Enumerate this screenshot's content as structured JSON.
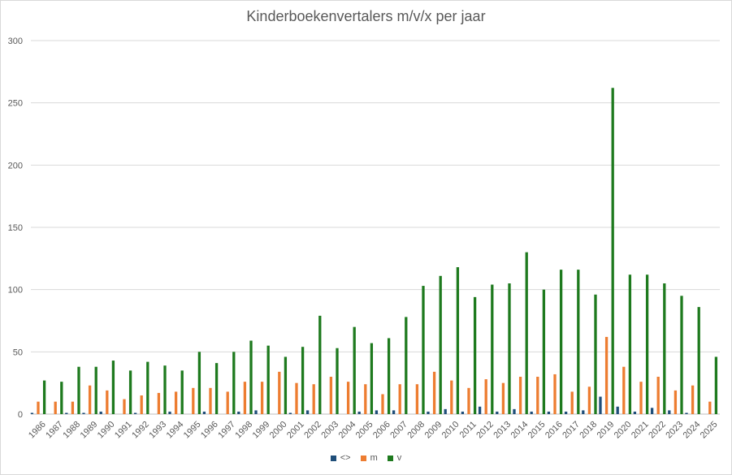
{
  "chart_data": {
    "type": "bar",
    "title": "Kinderboekenvertalers m/v/x per jaar",
    "xlabel": "",
    "ylabel": "",
    "ylim": [
      0,
      300
    ],
    "yticks": [
      0,
      50,
      100,
      150,
      200,
      250,
      300
    ],
    "grid": true,
    "legend_position": "bottom",
    "categories": [
      "1986",
      "1987",
      "1988",
      "1989",
      "1990",
      "1991",
      "1992",
      "1993",
      "1994",
      "1995",
      "1996",
      "1997",
      "1998",
      "1999",
      "2000",
      "2001",
      "2002",
      "2003",
      "2004",
      "2005",
      "2006",
      "2007",
      "2008",
      "2009",
      "2010",
      "2011",
      "2012",
      "2013",
      "2014",
      "2015",
      "2016",
      "2017",
      "2018",
      "2019",
      "2020",
      "2021",
      "2022",
      "2023",
      "2024",
      "2025"
    ],
    "series": [
      {
        "name": "<>",
        "color": "#1f4e79",
        "values": [
          1,
          0,
          1,
          1,
          2,
          0,
          1,
          0,
          2,
          0,
          2,
          0,
          2,
          3,
          0,
          1,
          3,
          0,
          0,
          2,
          3,
          3,
          0,
          2,
          4,
          2,
          6,
          2,
          4,
          2,
          2,
          2,
          3,
          14,
          6,
          2,
          5,
          3,
          1,
          0
        ]
      },
      {
        "name": "m",
        "color": "#ed7d31",
        "values": [
          10,
          10,
          10,
          23,
          19,
          12,
          15,
          17,
          18,
          21,
          21,
          18,
          26,
          26,
          34,
          25,
          24,
          30,
          26,
          24,
          16,
          24,
          24,
          34,
          27,
          21,
          28,
          25,
          30,
          30,
          32,
          18,
          22,
          62,
          38,
          26,
          30,
          19,
          23,
          10
        ]
      },
      {
        "name": "v",
        "color": "#1e7a1e",
        "values": [
          27,
          26,
          38,
          38,
          43,
          35,
          42,
          39,
          35,
          50,
          41,
          50,
          59,
          55,
          46,
          54,
          79,
          53,
          70,
          57,
          61,
          78,
          103,
          111,
          118,
          94,
          104,
          105,
          130,
          100,
          116,
          116,
          96,
          262,
          112,
          112,
          105,
          95,
          86,
          46
        ]
      }
    ]
  }
}
